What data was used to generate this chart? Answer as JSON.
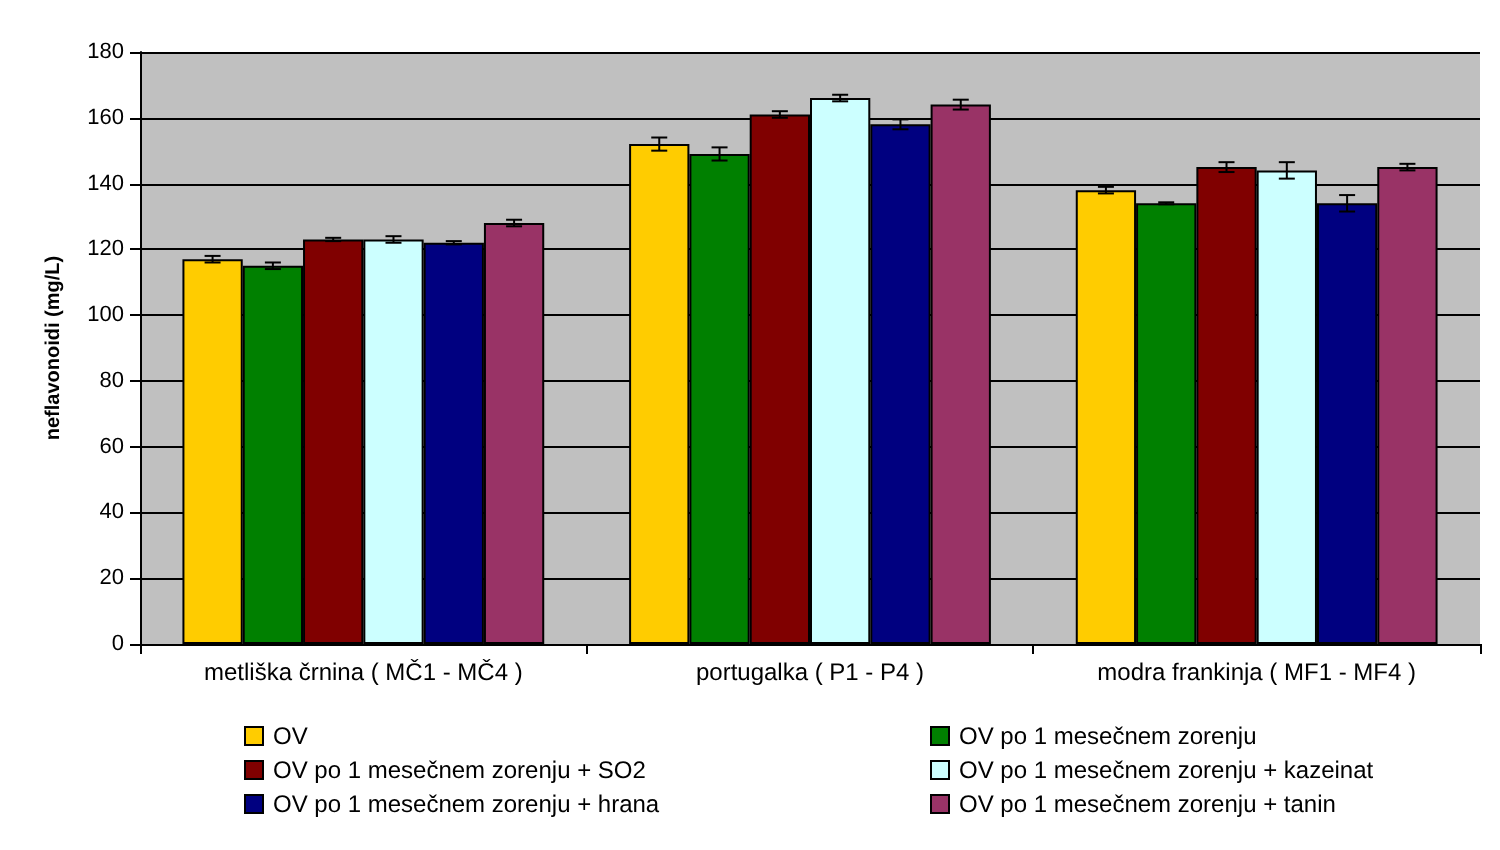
{
  "chart_data": {
    "type": "bar",
    "ylabel": "neflavonoidi (mg/L)",
    "categories": [
      "metliška črnina ( MČ1 - MČ4 )",
      "portugalka ( P1 - P4 )",
      "modra frankinja ( MF1 - MF4 )"
    ],
    "series": [
      {
        "name": "OV",
        "color": "#ffcc00",
        "values": [
          117,
          152,
          138
        ],
        "errors": [
          1,
          2,
          1
        ]
      },
      {
        "name": "OV po 1 mesečnem zorenju",
        "color": "#008000",
        "values": [
          115,
          149,
          134
        ],
        "errors": [
          1,
          2,
          0.3
        ]
      },
      {
        "name": "OV po 1 mesečnem zorenju + SO2",
        "color": "#800000",
        "values": [
          123,
          161,
          145
        ],
        "errors": [
          0.5,
          1,
          1.5
        ]
      },
      {
        "name": "OV po 1 mesečnem zorenju + kazeinat",
        "color": "#ccffff",
        "values": [
          123,
          166,
          144
        ],
        "errors": [
          1,
          1,
          2.5
        ]
      },
      {
        "name": "OV po 1 mesečnem zorenju + hrana",
        "color": "#000080",
        "values": [
          122,
          158,
          134
        ],
        "errors": [
          0.5,
          1.5,
          2.5
        ]
      },
      {
        "name": "OV po 1 mesečnem zorenju + tanin",
        "color": "#993366",
        "values": [
          128,
          164,
          145
        ],
        "errors": [
          1,
          1.5,
          1
        ]
      }
    ],
    "ylim": [
      0,
      180
    ],
    "yticks": [
      0,
      20,
      40,
      60,
      80,
      100,
      120,
      140,
      160,
      180
    ],
    "grid": "y",
    "legend": "bottom"
  }
}
